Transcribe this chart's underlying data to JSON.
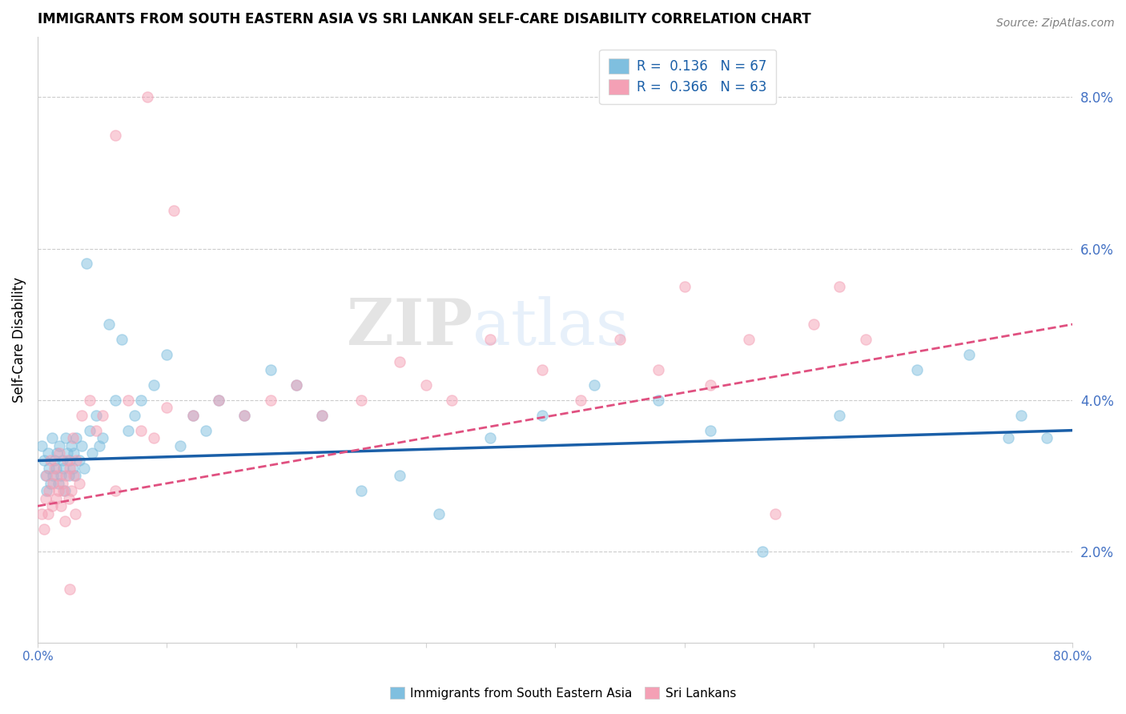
{
  "title": "IMMIGRANTS FROM SOUTH EASTERN ASIA VS SRI LANKAN SELF-CARE DISABILITY CORRELATION CHART",
  "source": "Source: ZipAtlas.com",
  "ylabel": "Self-Care Disability",
  "right_yticks": [
    "2.0%",
    "4.0%",
    "6.0%",
    "8.0%"
  ],
  "right_ytick_vals": [
    0.02,
    0.04,
    0.06,
    0.08
  ],
  "xmin": 0.0,
  "xmax": 0.8,
  "ymin": 0.008,
  "ymax": 0.088,
  "blue_R": "0.136",
  "blue_N": "67",
  "pink_R": "0.366",
  "pink_N": "63",
  "blue_color": "#7fbfdf",
  "pink_color": "#f4a0b5",
  "blue_line_color": "#1a5fa8",
  "pink_line_color": "#e05080",
  "watermark_zip": "ZIP",
  "watermark_atlas": "atlas",
  "legend_label_blue": "Immigrants from South Eastern Asia",
  "legend_label_pink": "Sri Lankans",
  "blue_scatter_x": [
    0.003,
    0.005,
    0.006,
    0.007,
    0.008,
    0.009,
    0.01,
    0.011,
    0.012,
    0.013,
    0.014,
    0.015,
    0.016,
    0.017,
    0.018,
    0.019,
    0.02,
    0.021,
    0.022,
    0.023,
    0.024,
    0.025,
    0.026,
    0.027,
    0.028,
    0.029,
    0.03,
    0.032,
    0.034,
    0.036,
    0.038,
    0.04,
    0.042,
    0.045,
    0.048,
    0.05,
    0.055,
    0.06,
    0.065,
    0.07,
    0.075,
    0.08,
    0.09,
    0.1,
    0.11,
    0.12,
    0.13,
    0.14,
    0.16,
    0.18,
    0.2,
    0.22,
    0.25,
    0.28,
    0.31,
    0.35,
    0.39,
    0.43,
    0.48,
    0.52,
    0.56,
    0.62,
    0.68,
    0.72,
    0.75,
    0.76,
    0.78
  ],
  "blue_scatter_y": [
    0.034,
    0.032,
    0.03,
    0.028,
    0.033,
    0.031,
    0.029,
    0.035,
    0.03,
    0.032,
    0.031,
    0.033,
    0.029,
    0.034,
    0.03,
    0.032,
    0.031,
    0.028,
    0.035,
    0.033,
    0.03,
    0.032,
    0.034,
    0.031,
    0.033,
    0.03,
    0.035,
    0.032,
    0.034,
    0.031,
    0.058,
    0.036,
    0.033,
    0.038,
    0.034,
    0.035,
    0.05,
    0.04,
    0.048,
    0.036,
    0.038,
    0.04,
    0.042,
    0.046,
    0.034,
    0.038,
    0.036,
    0.04,
    0.038,
    0.044,
    0.042,
    0.038,
    0.028,
    0.03,
    0.025,
    0.035,
    0.038,
    0.042,
    0.04,
    0.036,
    0.02,
    0.038,
    0.044,
    0.046,
    0.035,
    0.038,
    0.035
  ],
  "pink_scatter_x": [
    0.003,
    0.005,
    0.006,
    0.007,
    0.008,
    0.009,
    0.01,
    0.011,
    0.012,
    0.013,
    0.014,
    0.015,
    0.016,
    0.017,
    0.018,
    0.019,
    0.02,
    0.021,
    0.022,
    0.023,
    0.024,
    0.025,
    0.026,
    0.027,
    0.028,
    0.029,
    0.03,
    0.032,
    0.034,
    0.04,
    0.045,
    0.05,
    0.06,
    0.07,
    0.08,
    0.09,
    0.1,
    0.12,
    0.14,
    0.16,
    0.18,
    0.2,
    0.22,
    0.25,
    0.28,
    0.3,
    0.32,
    0.35,
    0.39,
    0.42,
    0.45,
    0.48,
    0.5,
    0.52,
    0.55,
    0.57,
    0.6,
    0.62,
    0.64,
    0.06,
    0.085,
    0.105,
    0.025
  ],
  "pink_scatter_y": [
    0.025,
    0.023,
    0.027,
    0.03,
    0.025,
    0.028,
    0.032,
    0.026,
    0.029,
    0.031,
    0.027,
    0.03,
    0.028,
    0.033,
    0.026,
    0.029,
    0.028,
    0.024,
    0.03,
    0.032,
    0.027,
    0.031,
    0.028,
    0.035,
    0.03,
    0.025,
    0.032,
    0.029,
    0.038,
    0.04,
    0.036,
    0.038,
    0.028,
    0.04,
    0.036,
    0.035,
    0.039,
    0.038,
    0.04,
    0.038,
    0.04,
    0.042,
    0.038,
    0.04,
    0.045,
    0.042,
    0.04,
    0.048,
    0.044,
    0.04,
    0.048,
    0.044,
    0.055,
    0.042,
    0.048,
    0.025,
    0.05,
    0.055,
    0.048,
    0.075,
    0.08,
    0.065,
    0.015
  ]
}
